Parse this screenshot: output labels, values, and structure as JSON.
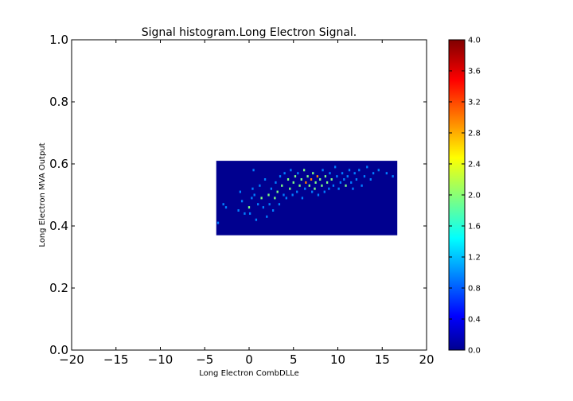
{
  "chart_data": {
    "type": "heatmap",
    "title": "Signal histogram.Long Electron Signal.",
    "xlabel": "Long Electron CombDLLe",
    "ylabel": "Long Electron MVA Output",
    "xlim": [
      -20,
      20
    ],
    "ylim": [
      0.0,
      1.0
    ],
    "x_ticks": [
      "−20",
      "−15",
      "−10",
      "−5",
      "0",
      "5",
      "10",
      "15",
      "20"
    ],
    "y_ticks": [
      "0.0",
      "0.2",
      "0.4",
      "0.6",
      "0.8",
      "1.0"
    ],
    "histogram_x_range": [
      -3.7,
      16.7
    ],
    "histogram_y_range": [
      0.37,
      0.61
    ],
    "grid": false,
    "colormap": "jet",
    "colorbar": {
      "min": 0.0,
      "max": 4.0,
      "ticks": [
        "0.0",
        "0.4",
        "0.8",
        "1.2",
        "1.6",
        "2.0",
        "2.4",
        "2.8",
        "3.2",
        "3.6",
        "4.0"
      ]
    },
    "background_color": "#00008f",
    "cells": [
      [
        -3.5,
        0.41,
        1
      ],
      [
        -2.9,
        0.47,
        1
      ],
      [
        -2.6,
        0.46,
        1
      ],
      [
        -1.2,
        0.45,
        1
      ],
      [
        -1.0,
        0.51,
        1
      ],
      [
        -0.8,
        0.48,
        1
      ],
      [
        -0.5,
        0.44,
        1
      ],
      [
        0.0,
        0.46,
        2
      ],
      [
        0.1,
        0.44,
        1
      ],
      [
        0.3,
        0.49,
        1
      ],
      [
        0.5,
        0.58,
        1
      ],
      [
        0.4,
        0.52,
        1
      ],
      [
        0.6,
        0.5,
        1
      ],
      [
        0.8,
        0.42,
        1
      ],
      [
        1.0,
        0.47,
        1
      ],
      [
        1.2,
        0.53,
        1
      ],
      [
        1.4,
        0.49,
        2
      ],
      [
        1.6,
        0.46,
        1
      ],
      [
        1.8,
        0.55,
        1
      ],
      [
        2.0,
        0.43,
        1
      ],
      [
        2.2,
        0.5,
        2
      ],
      [
        2.3,
        0.47,
        1
      ],
      [
        2.5,
        0.52,
        1
      ],
      [
        2.7,
        0.45,
        1
      ],
      [
        2.9,
        0.49,
        2
      ],
      [
        3.0,
        0.54,
        1
      ],
      [
        3.2,
        0.51,
        2
      ],
      [
        3.4,
        0.47,
        1
      ],
      [
        3.5,
        0.56,
        1
      ],
      [
        3.7,
        0.53,
        2
      ],
      [
        3.9,
        0.5,
        1
      ],
      [
        4.0,
        0.57,
        1
      ],
      [
        4.2,
        0.49,
        1
      ],
      [
        4.4,
        0.55,
        2
      ],
      [
        4.6,
        0.52,
        2
      ],
      [
        4.7,
        0.58,
        1
      ],
      [
        4.9,
        0.5,
        1
      ],
      [
        5.0,
        0.54,
        2
      ],
      [
        5.2,
        0.56,
        2
      ],
      [
        5.4,
        0.51,
        1
      ],
      [
        5.5,
        0.57,
        1
      ],
      [
        5.7,
        0.53,
        2
      ],
      [
        5.9,
        0.55,
        2
      ],
      [
        6.0,
        0.49,
        1
      ],
      [
        6.2,
        0.58,
        2
      ],
      [
        6.3,
        0.52,
        1
      ],
      [
        6.4,
        0.54,
        3
      ],
      [
        6.6,
        0.56,
        2
      ],
      [
        6.8,
        0.53,
        2
      ],
      [
        7.0,
        0.55,
        3
      ],
      [
        7.1,
        0.51,
        1
      ],
      [
        7.2,
        0.57,
        2
      ],
      [
        7.4,
        0.52,
        2
      ],
      [
        7.5,
        0.54,
        2
      ],
      [
        7.7,
        0.56,
        3
      ],
      [
        7.8,
        0.5,
        1
      ],
      [
        8.0,
        0.55,
        2
      ],
      [
        8.2,
        0.53,
        2
      ],
      [
        8.3,
        0.58,
        1
      ],
      [
        8.5,
        0.51,
        1
      ],
      [
        8.6,
        0.56,
        2
      ],
      [
        8.8,
        0.54,
        2
      ],
      [
        9.0,
        0.52,
        1
      ],
      [
        9.1,
        0.57,
        1
      ],
      [
        9.3,
        0.55,
        2
      ],
      [
        9.5,
        0.53,
        1
      ],
      [
        9.7,
        0.59,
        1
      ],
      [
        9.9,
        0.56,
        1
      ],
      [
        10.1,
        0.52,
        1
      ],
      [
        10.3,
        0.54,
        1
      ],
      [
        10.5,
        0.57,
        1
      ],
      [
        10.7,
        0.55,
        1
      ],
      [
        10.9,
        0.53,
        2
      ],
      [
        11.1,
        0.56,
        1
      ],
      [
        11.3,
        0.58,
        1
      ],
      [
        11.5,
        0.54,
        1
      ],
      [
        11.7,
        0.52,
        1
      ],
      [
        11.9,
        0.57,
        1
      ],
      [
        12.1,
        0.55,
        1
      ],
      [
        12.4,
        0.58,
        1
      ],
      [
        12.7,
        0.53,
        1
      ],
      [
        13.0,
        0.56,
        1
      ],
      [
        13.3,
        0.59,
        1
      ],
      [
        13.7,
        0.55,
        1
      ],
      [
        14.0,
        0.57,
        1
      ],
      [
        14.6,
        0.58,
        1
      ],
      [
        15.5,
        0.57,
        1
      ],
      [
        16.2,
        0.56,
        1
      ]
    ]
  }
}
